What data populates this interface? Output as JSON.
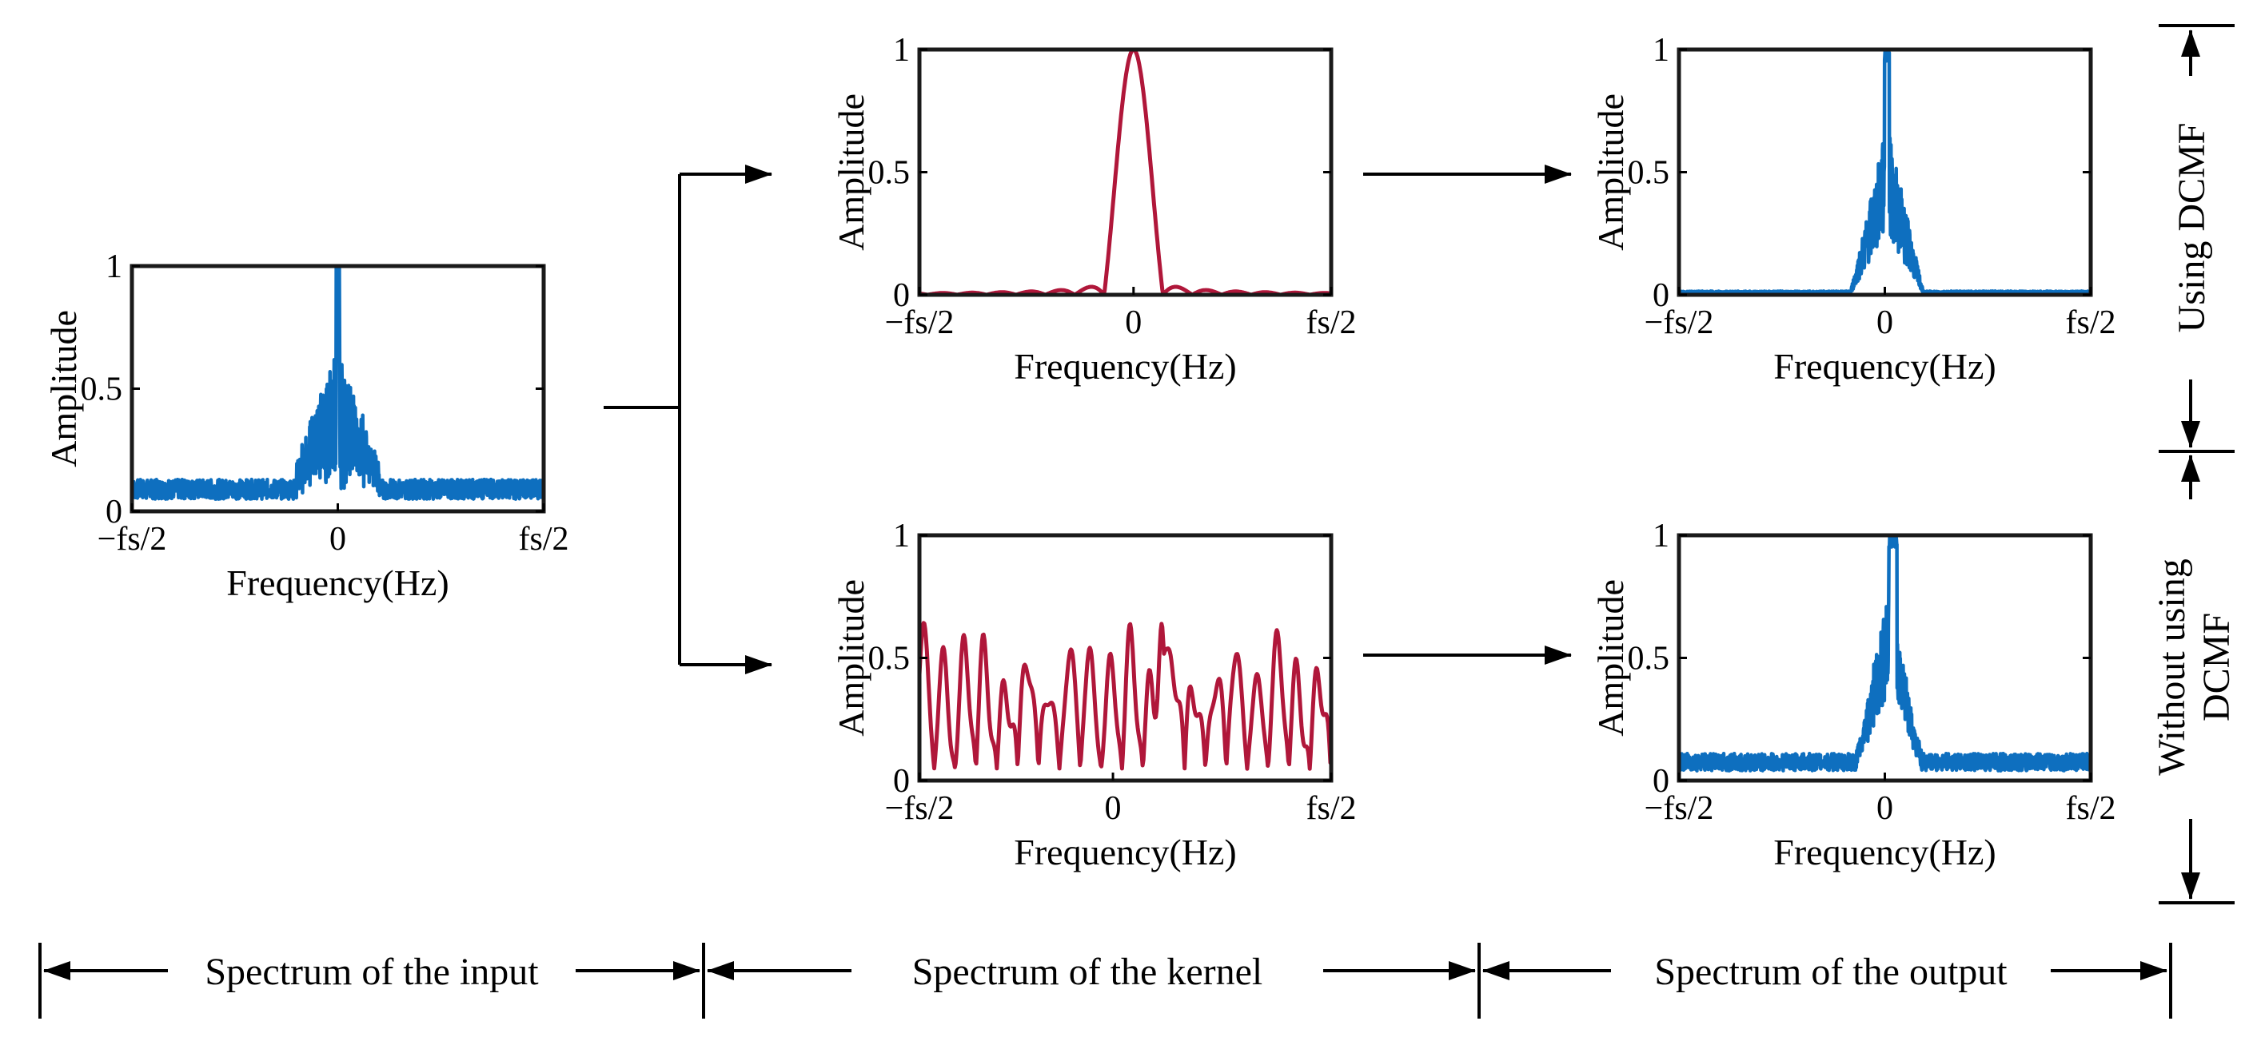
{
  "colors": {
    "input": "#0e6fbf",
    "kernel": "#b0173a",
    "output": "#0e6fbf",
    "frame": "#1a1a1a"
  },
  "labels": {
    "xlabel": "Frequency(Hz)",
    "ylabel": "Amplitude",
    "tick_left": "−fs/2",
    "tick_right": "fs/2",
    "tick_zero": "0"
  },
  "bottom": {
    "input": "Spectrum of the input",
    "kernel": "Spectrum of  the kernel",
    "output": "Spectrum of the output"
  },
  "side": {
    "using": "Using DCMF",
    "without_line1": "Without using",
    "without_line2": "DCMF"
  },
  "chart_data": [
    {
      "id": "input",
      "type": "line",
      "series": [
        {
          "values_shape": "noisy spectrum, peak 1 at 0"
        }
      ],
      "xlim": [
        "-fs/2",
        "fs/2"
      ],
      "ylim": [
        0,
        1
      ],
      "yticks": [
        0,
        0.5,
        1
      ],
      "xticks": [
        "-fs/2",
        "0",
        "fs/2"
      ]
    },
    {
      "id": "kernel-dcmf",
      "type": "line",
      "series": [
        {
          "values_shape": "single main lobe, peak 1 near 0"
        }
      ],
      "xlim": [
        "-fs/2",
        "fs/2"
      ],
      "ylim": [
        0,
        1
      ],
      "yticks": [
        0,
        0.5,
        1
      ],
      "xticks": [
        "-fs/2",
        "0",
        "fs/2"
      ]
    },
    {
      "id": "kernel-nodcmf",
      "type": "line",
      "series": [
        {
          "values_shape": "oscillating, many lobes 0.5-0.7, peak 1 right of 0"
        }
      ],
      "xlim": [
        "-fs/2",
        "fs/2"
      ],
      "ylim": [
        0,
        1
      ],
      "yticks": [
        0,
        0.5,
        1
      ],
      "xticks": [
        "-fs/2",
        "0",
        "fs/2"
      ]
    },
    {
      "id": "output-dcmf",
      "type": "line",
      "series": [
        {
          "values_shape": "narrow cluster near 0, flat elsewhere"
        }
      ],
      "xlim": [
        "-fs/2",
        "fs/2"
      ],
      "ylim": [
        0,
        1
      ],
      "yticks": [
        0,
        0.5,
        1
      ],
      "xticks": [
        "-fs/2",
        "0",
        "fs/2"
      ]
    },
    {
      "id": "output-nodcmf",
      "type": "line",
      "series": [
        {
          "values_shape": "cluster near 0 plus low noise floor ~0.1"
        }
      ],
      "xlim": [
        "-fs/2",
        "fs/2"
      ],
      "ylim": [
        0,
        1
      ],
      "yticks": [
        0,
        0.5,
        1
      ],
      "xticks": [
        "-fs/2",
        "0",
        "fs/2"
      ]
    }
  ]
}
